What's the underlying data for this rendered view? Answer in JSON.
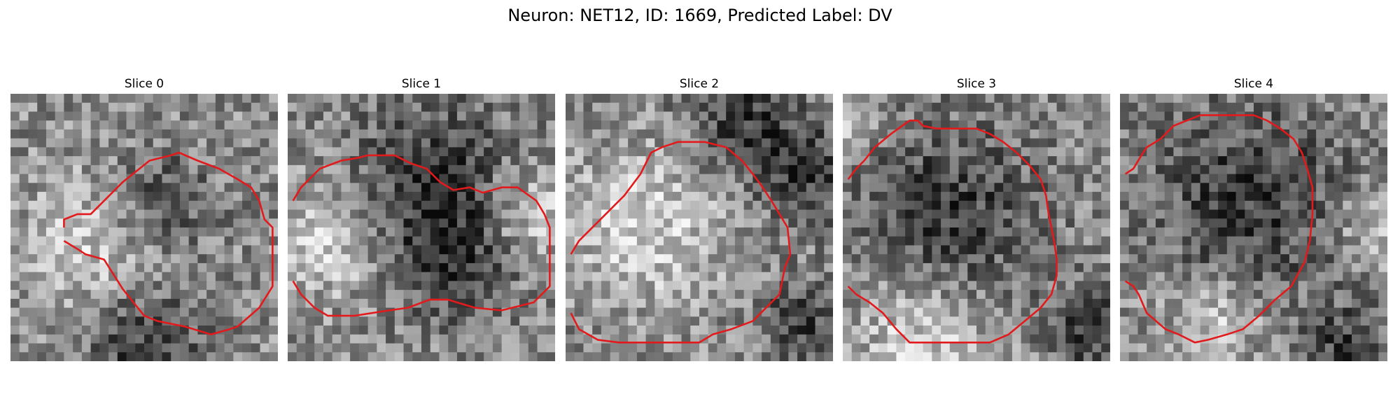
{
  "title": "Neuron: NET12, ID: 1669, Predicted Label: DV",
  "contour_color": "#e31a1c",
  "slices": [
    {
      "label": "Slice 0"
    },
    {
      "label": "Slice 1"
    },
    {
      "label": "Slice 2"
    },
    {
      "label": "Slice 3"
    },
    {
      "label": "Slice 4"
    }
  ]
}
